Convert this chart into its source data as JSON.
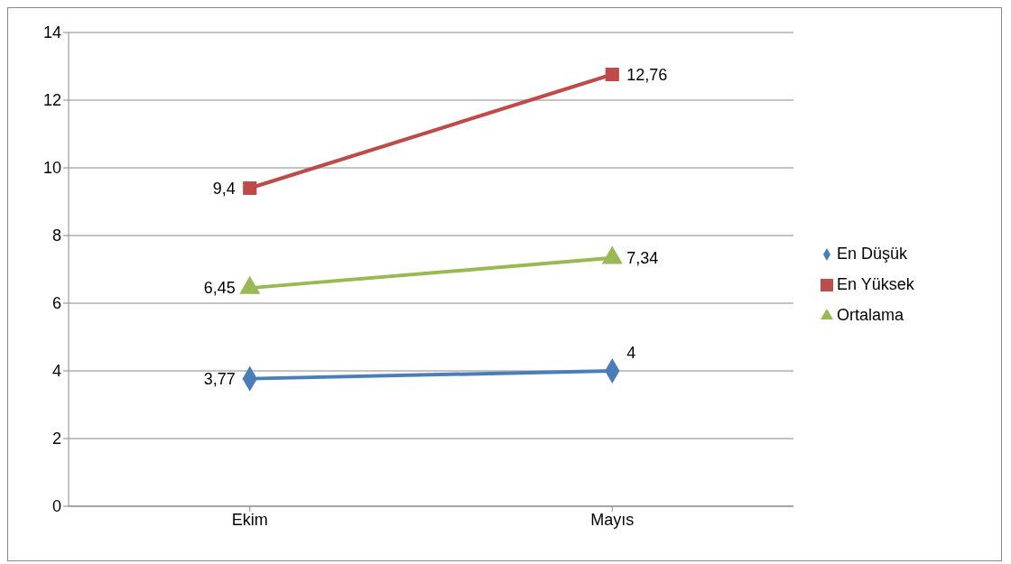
{
  "chart_data": {
    "type": "line",
    "categories": [
      "Ekim",
      "Mayıs"
    ],
    "series": [
      {
        "name": "En Düşük",
        "color": "#4a7ebb",
        "marker": "diamond",
        "values": [
          3.77,
          4
        ],
        "value_labels": [
          "3,77",
          "4"
        ]
      },
      {
        "name": "En Yüksek",
        "color": "#be4b48",
        "marker": "square",
        "values": [
          9.4,
          12.76
        ],
        "value_labels": [
          "9,4",
          "12,76"
        ]
      },
      {
        "name": "Ortalama",
        "color": "#98b954",
        "marker": "triangle",
        "values": [
          6.45,
          7.34
        ],
        "value_labels": [
          "6,45",
          "7,34"
        ]
      }
    ],
    "ylim": [
      0,
      14
    ],
    "yticks": [
      0,
      2,
      4,
      6,
      8,
      10,
      12,
      14
    ],
    "grid": "y",
    "legend": "right",
    "line_style": "solid"
  }
}
